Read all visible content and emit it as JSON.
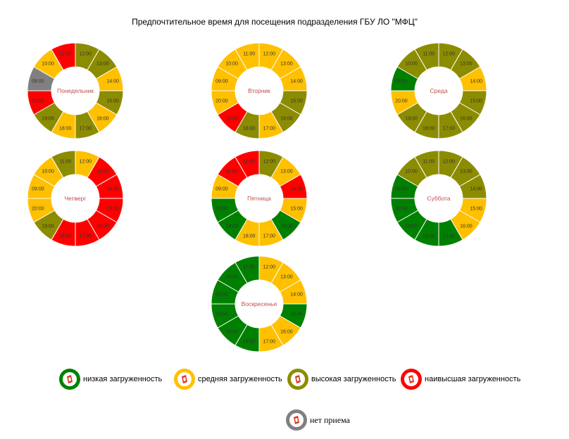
{
  "title": "Предпочтительное время для посещения подразделения ГБУ ЛО \"МФЦ\"",
  "colors": {
    "low": "#008000",
    "medium": "#ffc000",
    "high": "#8c8c00",
    "highest": "#ff0000",
    "closed": "#808080"
  },
  "legend": [
    {
      "level": "low",
      "label": "низкая загруженность",
      "icon": "mfc-logo-icon"
    },
    {
      "level": "medium",
      "label": "средняя загруженность",
      "icon": "mfc-logo-icon"
    },
    {
      "level": "high",
      "label": "высокая загруженность",
      "icon": "mfc-logo-icon"
    },
    {
      "level": "highest",
      "label": "наивысшая загруженность",
      "icon": "mfc-logo-icon"
    },
    {
      "level": "closed",
      "label": "нет приема",
      "icon": "mfc-logo-icon"
    }
  ],
  "chart_data": [
    {
      "type": "donut",
      "day": "Понедельник",
      "slices": [
        {
          "time": "12:00",
          "level": "high"
        },
        {
          "time": "13:00",
          "level": "high"
        },
        {
          "time": "14:00",
          "level": "medium"
        },
        {
          "time": "15:00",
          "level": "high"
        },
        {
          "time": "16:00",
          "level": "medium"
        },
        {
          "time": "17:00",
          "level": "high"
        },
        {
          "time": "18:00",
          "level": "medium"
        },
        {
          "time": "19:00",
          "level": "high"
        },
        {
          "time": "20:00",
          "level": "highest"
        },
        {
          "time": "09:00",
          "level": "closed"
        },
        {
          "time": "10:00",
          "level": "medium"
        },
        {
          "time": "11:00",
          "level": "highest"
        }
      ]
    },
    {
      "type": "donut",
      "day": "Вторник",
      "slices": [
        {
          "time": "12:00",
          "level": "medium"
        },
        {
          "time": "13:00",
          "level": "medium"
        },
        {
          "time": "14:00",
          "level": "medium"
        },
        {
          "time": "15:00",
          "level": "high"
        },
        {
          "time": "16:00",
          "level": "high"
        },
        {
          "time": "17:00",
          "level": "medium"
        },
        {
          "time": "18:00",
          "level": "high"
        },
        {
          "time": "19:00",
          "level": "highest"
        },
        {
          "time": "20:00",
          "level": "medium"
        },
        {
          "time": "09:00",
          "level": "medium"
        },
        {
          "time": "10:00",
          "level": "medium"
        },
        {
          "time": "11:00",
          "level": "medium"
        }
      ]
    },
    {
      "type": "donut",
      "day": "Среда",
      "slices": [
        {
          "time": "12:00",
          "level": "high"
        },
        {
          "time": "13:00",
          "level": "high"
        },
        {
          "time": "14:00",
          "level": "medium"
        },
        {
          "time": "15:00",
          "level": "high"
        },
        {
          "time": "16:00",
          "level": "high"
        },
        {
          "time": "17:00",
          "level": "high"
        },
        {
          "time": "18:00",
          "level": "high"
        },
        {
          "time": "19:00",
          "level": "high"
        },
        {
          "time": "20:00",
          "level": "medium"
        },
        {
          "time": "09:00",
          "level": "low"
        },
        {
          "time": "10:00",
          "level": "high"
        },
        {
          "time": "11:00",
          "level": "high"
        }
      ]
    },
    {
      "type": "donut",
      "day": "Четверг",
      "slices": [
        {
          "time": "12:00",
          "level": "medium"
        },
        {
          "time": "13:00",
          "level": "highest"
        },
        {
          "time": "14:00",
          "level": "highest"
        },
        {
          "time": "15:00",
          "level": "highest"
        },
        {
          "time": "16:00",
          "level": "highest"
        },
        {
          "time": "17:00",
          "level": "highest"
        },
        {
          "time": "18:00",
          "level": "highest"
        },
        {
          "time": "19:00",
          "level": "high"
        },
        {
          "time": "20:00",
          "level": "medium"
        },
        {
          "time": "09:00",
          "level": "medium"
        },
        {
          "time": "10:00",
          "level": "medium"
        },
        {
          "time": "11:00",
          "level": "high"
        }
      ]
    },
    {
      "type": "donut",
      "day": "Пятница",
      "slices": [
        {
          "time": "12:00",
          "level": "high"
        },
        {
          "time": "13:00",
          "level": "medium"
        },
        {
          "time": "14:00",
          "level": "highest"
        },
        {
          "time": "15:00",
          "level": "medium"
        },
        {
          "time": "16:00",
          "level": "low"
        },
        {
          "time": "17:00",
          "level": "medium"
        },
        {
          "time": "18:00",
          "level": "medium"
        },
        {
          "time": "19:00",
          "level": "low"
        },
        {
          "time": "20:00",
          "level": "low"
        },
        {
          "time": "09:00",
          "level": "medium"
        },
        {
          "time": "10:00",
          "level": "highest"
        },
        {
          "time": "11:00",
          "level": "highest"
        }
      ]
    },
    {
      "type": "donut",
      "day": "Суббота",
      "slices": [
        {
          "time": "12:00",
          "level": "high"
        },
        {
          "time": "13:00",
          "level": "high"
        },
        {
          "time": "14:00",
          "level": "high"
        },
        {
          "time": "15:00",
          "level": "medium"
        },
        {
          "time": "16:00",
          "level": "medium"
        },
        {
          "time": "17:00",
          "level": "low"
        },
        {
          "time": "18:00",
          "level": "low"
        },
        {
          "time": "19:00",
          "level": "low"
        },
        {
          "time": "20:00",
          "level": "low"
        },
        {
          "time": "09:00",
          "level": "low"
        },
        {
          "time": "10:00",
          "level": "high"
        },
        {
          "time": "11:00",
          "level": "high"
        }
      ]
    },
    {
      "type": "donut",
      "day": "Воскресенье",
      "slices": [
        {
          "time": "12:00",
          "level": "medium"
        },
        {
          "time": "13:00",
          "level": "medium"
        },
        {
          "time": "14:00",
          "level": "medium"
        },
        {
          "time": "15:00",
          "level": "low"
        },
        {
          "time": "16:00",
          "level": "medium"
        },
        {
          "time": "17:00",
          "level": "medium"
        },
        {
          "time": "18:00",
          "level": "low"
        },
        {
          "time": "19:00",
          "level": "low"
        },
        {
          "time": "20:00",
          "level": "low"
        },
        {
          "time": "09:00",
          "level": "low"
        },
        {
          "time": "10:00",
          "level": "low"
        },
        {
          "time": "11:00",
          "level": "low"
        }
      ]
    }
  ]
}
